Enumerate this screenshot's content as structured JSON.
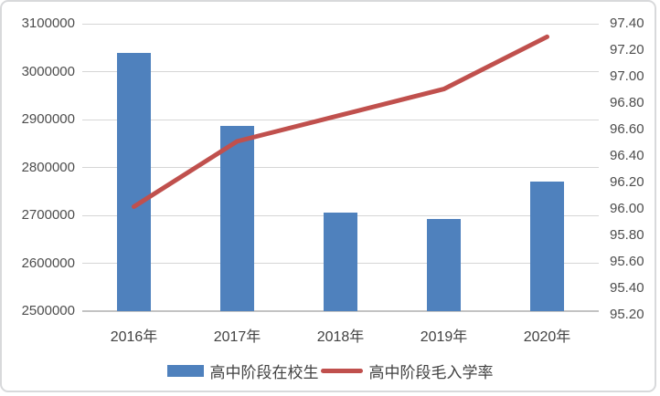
{
  "chart_data": {
    "type": "bar",
    "subtype": "combo-bar-line-dual-axis",
    "title": "",
    "categories": [
      "2016年",
      "2017年",
      "2018年",
      "2019年",
      "2020年"
    ],
    "series": [
      {
        "name": "高中阶段在校生",
        "type": "bar",
        "axis": "left",
        "color": "#4F81BD",
        "values": [
          3040000,
          2887000,
          2705000,
          2693000,
          2770000
        ]
      },
      {
        "name": "高中阶段毛入学率",
        "type": "line",
        "axis": "right",
        "color": "#C0504D",
        "values": [
          96.0,
          96.5,
          96.7,
          96.9,
          97.3
        ]
      }
    ],
    "left_axis": {
      "min": 2500000,
      "max": 3100000,
      "step": 100000,
      "decimals": 0,
      "tick_labels": [
        "3100000",
        "3000000",
        "2900000",
        "2800000",
        "2700000",
        "2600000",
        "2500000"
      ]
    },
    "right_axis": {
      "min": 95.2,
      "max": 97.4,
      "step": 0.2,
      "decimals": 2,
      "tick_labels": [
        "97.40",
        "97.20",
        "97.00",
        "96.80",
        "96.60",
        "96.40",
        "96.20",
        "96.00",
        "95.80",
        "95.60",
        "95.40",
        "95.20"
      ]
    },
    "grid": true,
    "legend_position": "bottom",
    "gridline_color": "#d6d6d6",
    "axis_label_color": "#4d4d4d"
  },
  "legend": {
    "bar_label": "高中阶段在校生",
    "line_label": "高中阶段毛入学率"
  }
}
